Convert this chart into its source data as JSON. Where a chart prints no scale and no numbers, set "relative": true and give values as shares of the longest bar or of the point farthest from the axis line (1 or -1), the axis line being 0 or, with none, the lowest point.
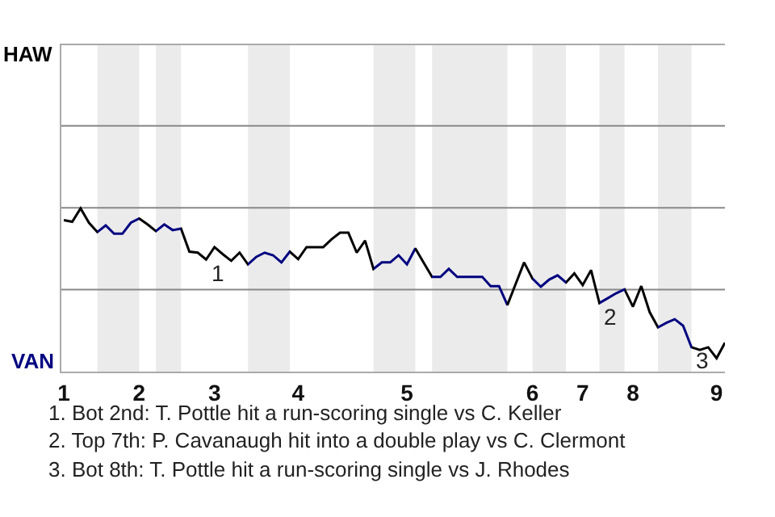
{
  "chart_data": {
    "type": "line",
    "relative": true,
    "categories": [
      "1",
      null,
      null,
      null,
      null,
      null,
      null,
      null,
      null,
      "2",
      null,
      null,
      null,
      null,
      null,
      null,
      null,
      null,
      "3",
      null,
      null,
      null,
      null,
      null,
      null,
      null,
      null,
      null,
      "4",
      null,
      null,
      null,
      null,
      null,
      null,
      null,
      null,
      null,
      null,
      null,
      null,
      "5",
      null,
      null,
      null,
      null,
      null,
      null,
      null,
      null,
      null,
      null,
      null,
      null,
      null,
      null,
      "6",
      null,
      null,
      null,
      null,
      null,
      "7",
      null,
      null,
      null,
      null,
      null,
      "8",
      null,
      null,
      null,
      null,
      null,
      null,
      null,
      null,
      null,
      "9",
      null
    ],
    "series": [
      {
        "color": "#000000",
        "values": [
          0.928,
          0.918,
          1,
          0.912,
          0.855,
          0.896,
          0.845,
          0.845,
          0.912,
          0.938,
          0.902,
          0.861,
          0.902,
          0.867,
          0.876,
          0.735,
          0.729,
          0.687,
          0.763,
          0.719,
          0.679,
          0.729,
          0.657,
          0.703,
          0.729,
          0.713,
          0.669,
          0.735,
          0.689,
          0.763,
          0.763,
          0.763,
          0.811,
          0.851,
          0.851,
          0.729,
          0.803,
          0.629,
          0.669,
          0.669,
          0.713,
          0.657,
          0.755,
          0.667,
          0.58,
          0.58,
          0.629,
          0.58,
          0.58,
          0.58,
          0.58,
          0.524,
          0.524,
          0.408,
          0.538,
          0.669,
          0.57,
          0.52,
          0.564,
          0.59,
          0.546,
          0.602,
          0.53,
          0.622,
          0.42,
          0.45,
          0.48,
          0.504,
          0.398,
          0.524,
          0.365,
          0.271,
          0.299,
          0.321,
          0.281,
          0.149,
          0.133,
          0.149,
          0.082,
          0.177
        ],
        "colors": [
          "#000000",
          "#000000",
          "#000000",
          "#000000",
          "#000080",
          "#000080",
          "#000080",
          "#000080",
          "#000080",
          "#000000",
          "#000000",
          "#000080",
          "#000080",
          "#000080",
          "#000000",
          "#000000",
          "#000000",
          "#000000",
          "#000000",
          "#000000",
          "#000000",
          "#000000",
          "#000080",
          "#000080",
          "#000080",
          "#000080",
          "#000080",
          "#000000",
          "#000000",
          "#000000",
          "#000000",
          "#000000",
          "#000000",
          "#000000",
          "#000000",
          "#000000",
          "#000000",
          "#000080",
          "#000080",
          "#000080",
          "#000080",
          "#000080",
          "#000000",
          "#000000",
          "#000080",
          "#000080",
          "#000080",
          "#000080",
          "#000080",
          "#000080",
          "#000080",
          "#000080",
          "#000080",
          "#000000",
          "#000000",
          "#000000",
          "#000080",
          "#000080",
          "#000080",
          "#000080",
          "#000000",
          "#000000",
          "#000000",
          "#000000",
          "#000080",
          "#000080",
          "#000080",
          "#000000",
          "#000000",
          "#000000",
          "#000000",
          "#000080",
          "#000080",
          "#000080",
          "#000080",
          "#000000",
          "#000000",
          "#000000",
          "#000000",
          "#000000"
        ],
        "line_style": "solid"
      }
    ],
    "ref_lines": [
      {
        "axis": "y",
        "value": 0.502,
        "color": "#888888"
      },
      {
        "axis": "y",
        "value": 1.004,
        "color": "#888888"
      },
      {
        "axis": "y",
        "value": 1.506,
        "color": "#888888"
      }
    ],
    "annotations": [
      {
        "text": "1",
        "y": 0.687
      },
      {
        "text": "2",
        "y": 0.42
      },
      {
        "text": "3",
        "y": 0.149
      },
      "HAW",
      "VAN",
      "1. Bot 2nd: T. Pottle hit a run-scoring single vs C. Keller",
      "2. Top 7th: P. Cavanaugh hit into a double play vs C. Clermont",
      "3. Bot 8th: T. Pottle hit a run-scoring single vs J. Rhodes"
    ]
  }
}
